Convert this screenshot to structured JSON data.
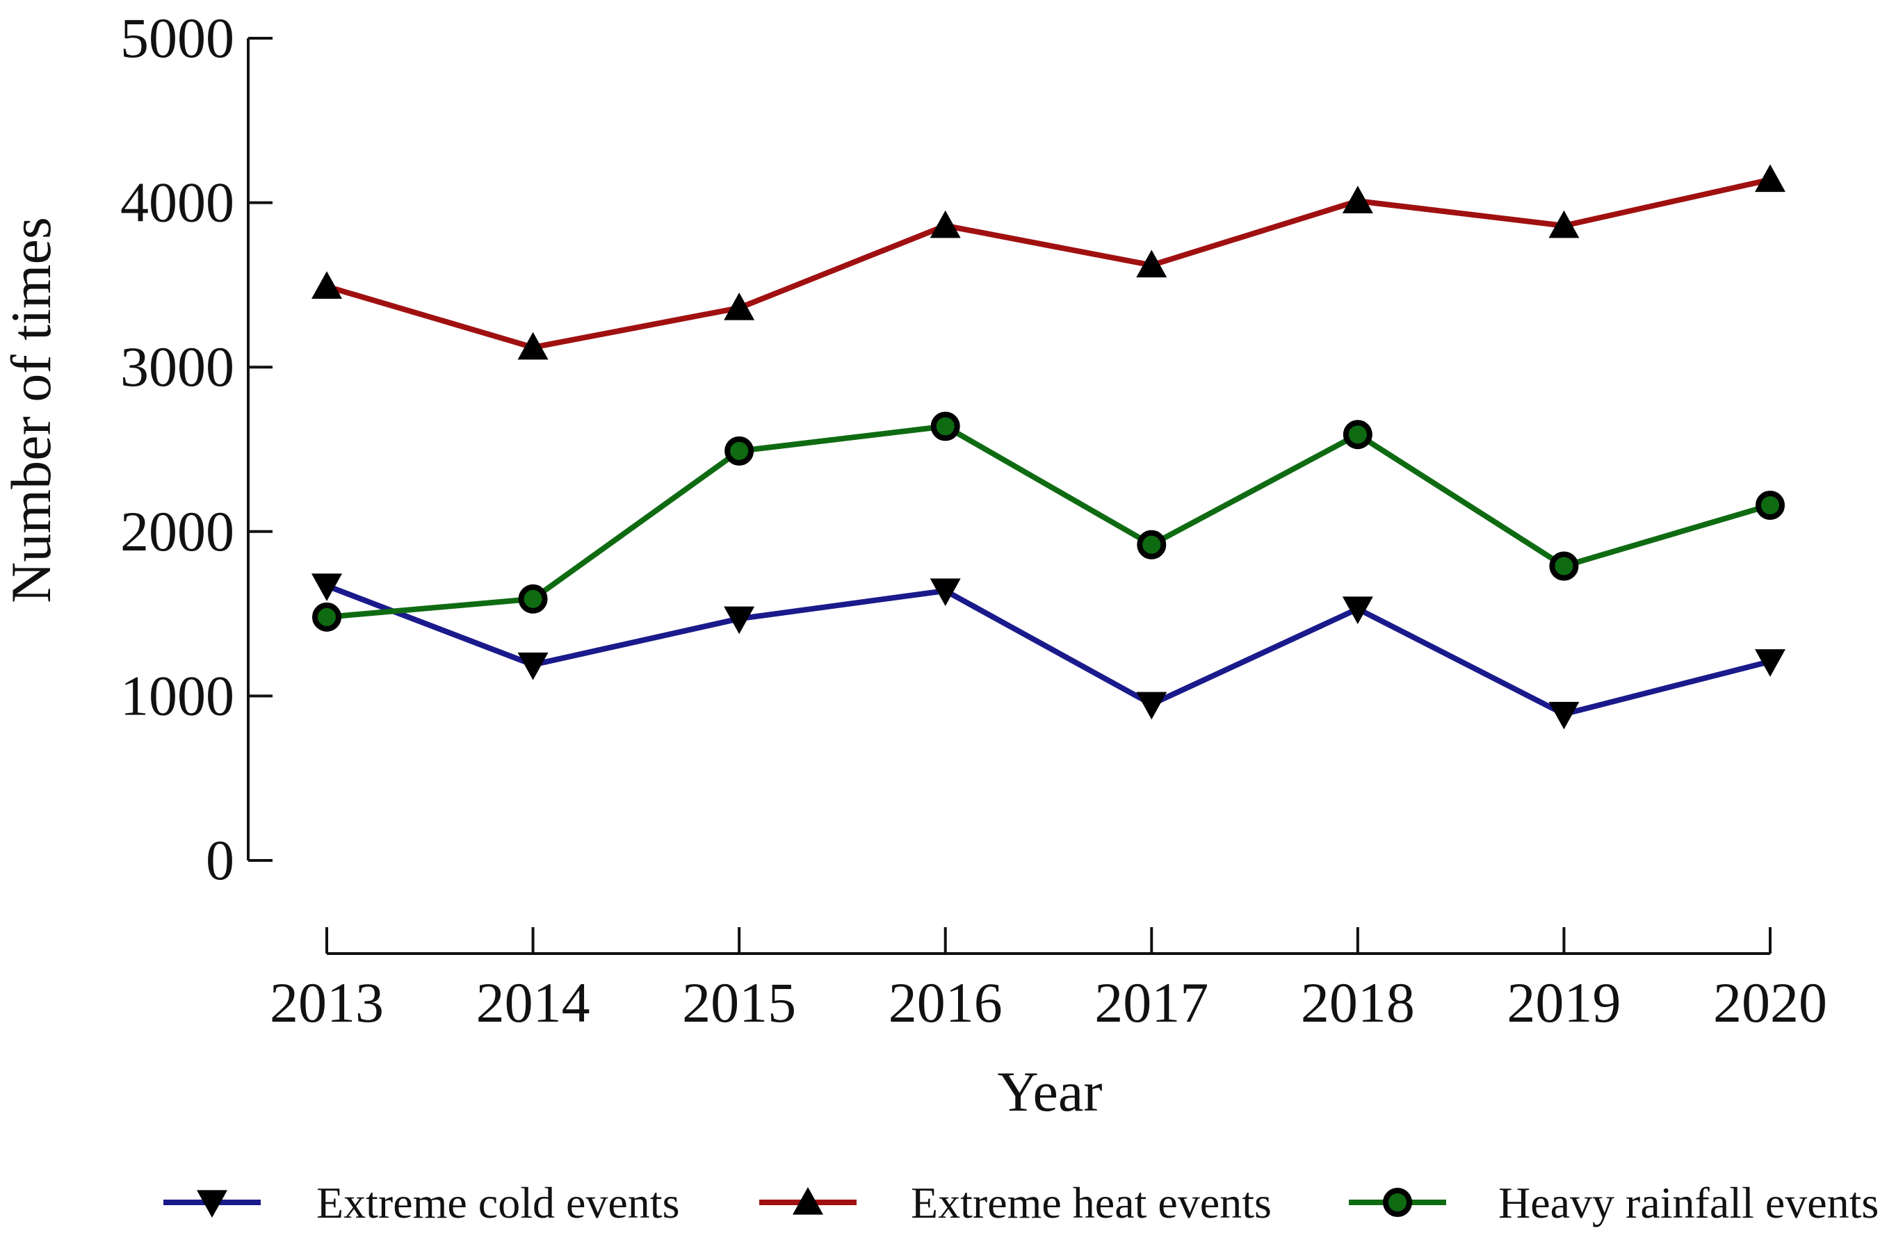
{
  "chart_data": {
    "type": "line",
    "title": "",
    "xlabel": "Year",
    "ylabel": "Number of times",
    "categories": [
      "2013",
      "2014",
      "2015",
      "2016",
      "2017",
      "2018",
      "2019",
      "2020"
    ],
    "ylim": [
      0,
      5000
    ],
    "yticks": [
      "0",
      "1000",
      "2000",
      "3000",
      "4000",
      "5000"
    ],
    "grid": false,
    "legend_position": "bottom",
    "series": [
      {
        "name": "Extreme cold events",
        "color": "#1a1a8c",
        "marker": "triangle-down",
        "values": [
          1670,
          1190,
          1470,
          1640,
          950,
          1530,
          890,
          1210
        ]
      },
      {
        "name": "Extreme heat events",
        "color": "#a01010",
        "marker": "triangle-up",
        "values": [
          3490,
          3120,
          3360,
          3860,
          3620,
          4010,
          3860,
          4140
        ]
      },
      {
        "name": "Heavy rainfall events",
        "color": "#0f6b12",
        "marker": "circle",
        "values": [
          1480,
          1590,
          2490,
          2640,
          1920,
          2590,
          1790,
          2160
        ]
      }
    ]
  }
}
